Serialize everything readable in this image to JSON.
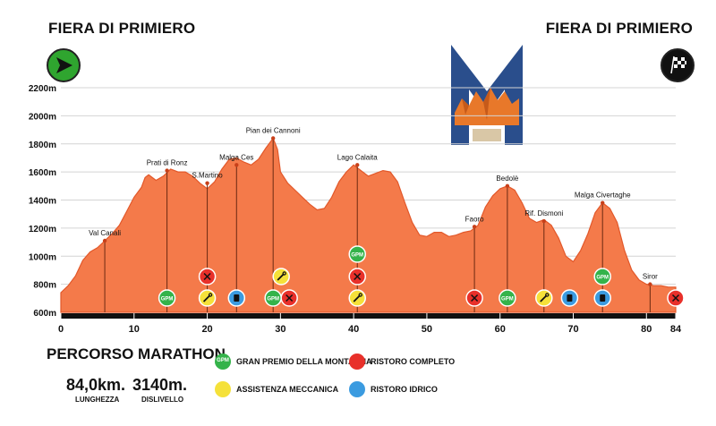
{
  "header": {
    "start_title": "FIERA DI PRIMIERO",
    "finish_title": "FIERA DI PRIMIERO"
  },
  "colors": {
    "fill": "#f47a4a",
    "stroke": "#e2582a",
    "gpm": "#34b34a",
    "ristoro_completo": "#e8302a",
    "assistenza": "#f5e13a",
    "ristoro_idrico": "#3b9be0",
    "logo_blue": "#2a4e8c",
    "logo_orange": "#e8782a"
  },
  "legend": {
    "title": "PERCORSO MARATHON",
    "items": [
      {
        "key": "gpm",
        "icon_text": "GPM",
        "label": "GRAN PREMIO DELLA MONTAGNA"
      },
      {
        "key": "ristoro_completo",
        "icon_text": "",
        "label": "RISTORO COMPLETO"
      },
      {
        "key": "assistenza",
        "icon_text": "",
        "label": "ASSISTENZA MECCANICA"
      },
      {
        "key": "ristoro_idrico",
        "icon_text": "",
        "label": "RISTORO IDRICO"
      }
    ]
  },
  "stats": [
    {
      "value": "84,0km.",
      "label": "LUNGHEZZA"
    },
    {
      "value": "3140m.",
      "label": "DISLIVELLO"
    }
  ],
  "chart_data": {
    "type": "area",
    "ylim": [
      600,
      2200
    ],
    "xlim": [
      0,
      84
    ],
    "y_ticks": [
      {
        "v": 600,
        "label": "600m"
      },
      {
        "v": 800,
        "label": "800m"
      },
      {
        "v": 1000,
        "label": "1000m"
      },
      {
        "v": 1200,
        "label": "1200m"
      },
      {
        "v": 1400,
        "label": "1400m"
      },
      {
        "v": 1600,
        "label": "1600m"
      },
      {
        "v": 1800,
        "label": "1800m"
      },
      {
        "v": 2000,
        "label": "2000m"
      },
      {
        "v": 2200,
        "label": "2200m"
      }
    ],
    "x_ticks": [
      {
        "v": 0,
        "label": "0"
      },
      {
        "v": 10,
        "label": "10"
      },
      {
        "v": 20,
        "label": "20"
      },
      {
        "v": 30,
        "label": "30"
      },
      {
        "v": 40,
        "label": "40"
      },
      {
        "v": 50,
        "label": "50"
      },
      {
        "v": 60,
        "label": "60"
      },
      {
        "v": 70,
        "label": "70"
      },
      {
        "v": 80,
        "label": "80"
      },
      {
        "v": 84,
        "label": "84"
      }
    ],
    "profile": [
      [
        0,
        740
      ],
      [
        1,
        790
      ],
      [
        2,
        860
      ],
      [
        3,
        970
      ],
      [
        4,
        1030
      ],
      [
        5,
        1060
      ],
      [
        6,
        1110
      ],
      [
        7,
        1160
      ],
      [
        8,
        1220
      ],
      [
        9,
        1320
      ],
      [
        10,
        1420
      ],
      [
        11,
        1490
      ],
      [
        11.5,
        1560
      ],
      [
        12,
        1580
      ],
      [
        13,
        1540
      ],
      [
        14,
        1570
      ],
      [
        15,
        1620
      ],
      [
        16,
        1600
      ],
      [
        17,
        1600
      ],
      [
        18,
        1570
      ],
      [
        19,
        1520
      ],
      [
        20,
        1480
      ],
      [
        21,
        1530
      ],
      [
        22,
        1620
      ],
      [
        23,
        1690
      ],
      [
        24,
        1700
      ],
      [
        25,
        1670
      ],
      [
        26,
        1650
      ],
      [
        27,
        1690
      ],
      [
        28,
        1770
      ],
      [
        29,
        1840
      ],
      [
        29.6,
        1760
      ],
      [
        30,
        1600
      ],
      [
        31,
        1520
      ],
      [
        32,
        1470
      ],
      [
        33,
        1420
      ],
      [
        34,
        1370
      ],
      [
        35,
        1330
      ],
      [
        36,
        1340
      ],
      [
        37,
        1420
      ],
      [
        38,
        1530
      ],
      [
        39,
        1600
      ],
      [
        40,
        1650
      ],
      [
        41,
        1610
      ],
      [
        42,
        1570
      ],
      [
        43,
        1590
      ],
      [
        44,
        1610
      ],
      [
        45,
        1600
      ],
      [
        46,
        1530
      ],
      [
        47,
        1380
      ],
      [
        48,
        1240
      ],
      [
        49,
        1150
      ],
      [
        50,
        1140
      ],
      [
        51,
        1170
      ],
      [
        52,
        1170
      ],
      [
        53,
        1140
      ],
      [
        54,
        1150
      ],
      [
        55,
        1170
      ],
      [
        56,
        1180
      ],
      [
        57,
        1220
      ],
      [
        58,
        1350
      ],
      [
        59,
        1430
      ],
      [
        60,
        1480
      ],
      [
        61,
        1500
      ],
      [
        62,
        1470
      ],
      [
        63,
        1380
      ],
      [
        64,
        1270
      ],
      [
        65,
        1240
      ],
      [
        66,
        1260
      ],
      [
        67,
        1220
      ],
      [
        68,
        1130
      ],
      [
        69,
        1000
      ],
      [
        70,
        960
      ],
      [
        71,
        1040
      ],
      [
        72,
        1160
      ],
      [
        73,
        1310
      ],
      [
        74,
        1380
      ],
      [
        75,
        1340
      ],
      [
        76,
        1240
      ],
      [
        77,
        1040
      ],
      [
        78,
        900
      ],
      [
        79,
        830
      ],
      [
        80,
        800
      ],
      [
        81,
        790
      ],
      [
        82,
        790
      ],
      [
        83,
        780
      ],
      [
        84,
        780
      ]
    ],
    "locations": [
      {
        "name": "Val Canali",
        "km": 6,
        "elev": 1110
      },
      {
        "name": "Prati di Ronz",
        "km": 14.5,
        "elev": 1610
      },
      {
        "name": "S.Martino",
        "km": 20,
        "elev": 1520
      },
      {
        "name": "Malga Ces",
        "km": 24,
        "elev": 1650
      },
      {
        "name": "Pian dei Cannoni",
        "km": 29,
        "elev": 1840
      },
      {
        "name": "Lago Calaita",
        "km": 40.5,
        "elev": 1650
      },
      {
        "name": "Faoro",
        "km": 56.5,
        "elev": 1210
      },
      {
        "name": "Bedolè",
        "km": 61,
        "elev": 1500
      },
      {
        "name": "Rif. Dismoni",
        "km": 66,
        "elev": 1250
      },
      {
        "name": "Malga Civertaghe",
        "km": 74,
        "elev": 1380
      },
      {
        "name": "Siror",
        "km": 80.5,
        "elev": 800
      }
    ],
    "markers": [
      {
        "km": 14.5,
        "type": "gpm",
        "text": "GPM",
        "row": 0
      },
      {
        "km": 20,
        "type": "assistenza",
        "text": "",
        "row": 0
      },
      {
        "km": 20,
        "type": "ristoro_completo",
        "text": "",
        "row": 1
      },
      {
        "km": 24,
        "type": "ristoro_idrico",
        "text": "",
        "row": 0
      },
      {
        "km": 29,
        "type": "gpm",
        "text": "GPM",
        "row": 0
      },
      {
        "km": 30.1,
        "type": "assistenza",
        "text": "",
        "row": 1
      },
      {
        "km": 31.2,
        "type": "ristoro_completo",
        "text": "",
        "row": 0
      },
      {
        "km": 40.5,
        "type": "assistenza",
        "text": "",
        "row": 0
      },
      {
        "km": 40.5,
        "type": "ristoro_completo",
        "text": "",
        "row": 1
      },
      {
        "km": 40.5,
        "type": "gpm",
        "text": "GPM",
        "row": 2
      },
      {
        "km": 56.5,
        "type": "ristoro_completo",
        "text": "",
        "row": 0
      },
      {
        "km": 61,
        "type": "gpm",
        "text": "GPM",
        "row": 0
      },
      {
        "km": 66,
        "type": "assistenza",
        "text": "",
        "row": 0
      },
      {
        "km": 69.5,
        "type": "ristoro_idrico",
        "text": "",
        "row": 0
      },
      {
        "km": 74,
        "type": "ristoro_idrico",
        "text": "",
        "row": 0
      },
      {
        "km": 74,
        "type": "gpm",
        "text": "GPM",
        "row": 1
      },
      {
        "km": 84,
        "type": "ristoro_completo",
        "text": "",
        "row": 0
      }
    ]
  }
}
